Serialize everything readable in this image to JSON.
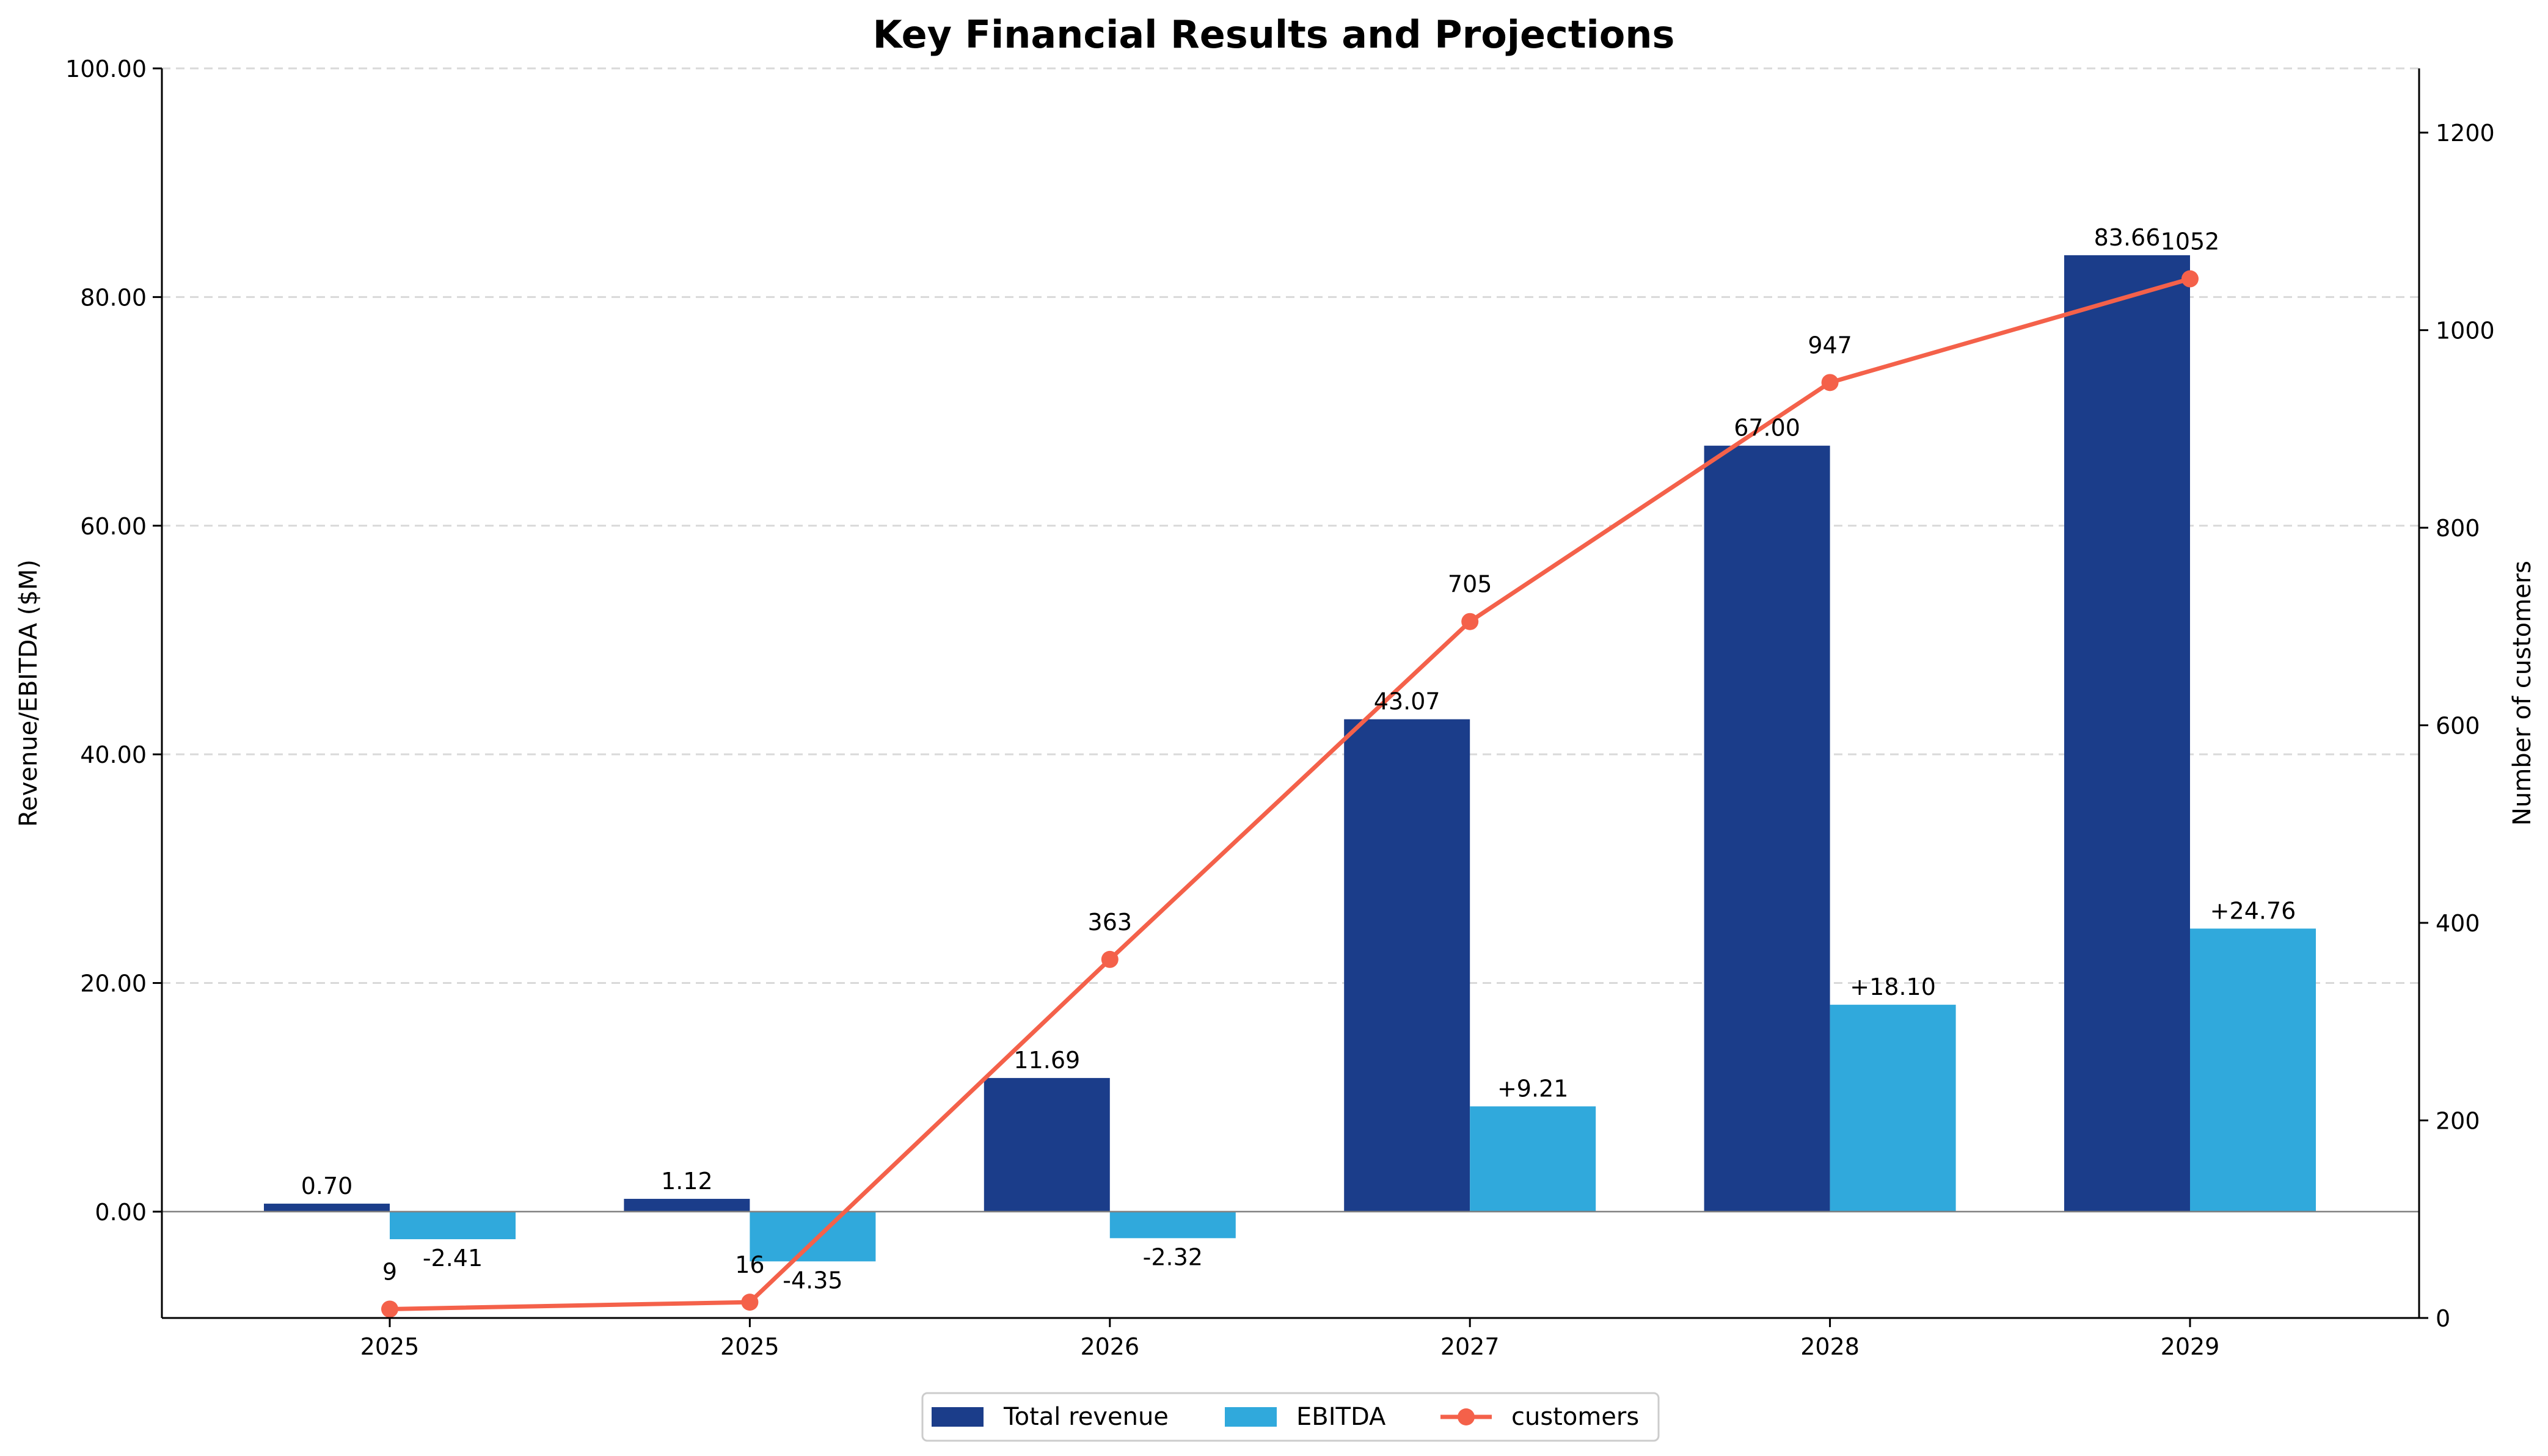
{
  "chart_data": {
    "type": "bar",
    "title": "Key Financial Results and Projections",
    "ylabel": "Revenue/EBITDA ($M)",
    "y2label": "Number of customers",
    "categories": [
      "2025",
      "2025",
      "2026",
      "2027",
      "2028",
      "2029"
    ],
    "ylim": [
      -9.3,
      100
    ],
    "y2lim": [
      0,
      1265
    ],
    "yticks": [
      "0.00",
      "20.00",
      "40.00",
      "60.00",
      "80.00",
      "100.00"
    ],
    "y2ticks": [
      "0",
      "200",
      "400",
      "600",
      "800",
      "1000",
      "1200"
    ],
    "grid": "horizontal dashed",
    "legend_position": "bottom-center",
    "series": [
      {
        "name": "Total revenue",
        "kind": "bar",
        "axis": "left",
        "color": "#1b3d8a",
        "values": [
          0.7,
          1.12,
          11.69,
          43.07,
          67.0,
          83.66
        ],
        "labels": [
          "0.70",
          "1.12",
          "11.69",
          "43.07",
          "67.00",
          "83.66"
        ]
      },
      {
        "name": "EBITDA",
        "kind": "bar",
        "axis": "left",
        "color": "#30a9dc",
        "values": [
          -2.41,
          -4.35,
          -2.32,
          9.21,
          18.1,
          24.76
        ],
        "labels": [
          "-2.41",
          "-4.35",
          "-2.32",
          "+9.21",
          "+18.10",
          "+24.76"
        ]
      },
      {
        "name": "customers",
        "kind": "line",
        "axis": "right",
        "color": "#f4614a",
        "values": [
          9,
          16,
          363,
          705,
          947,
          1052
        ],
        "labels": [
          "9",
          "16",
          "363",
          "705",
          "947",
          "1052"
        ]
      }
    ]
  }
}
